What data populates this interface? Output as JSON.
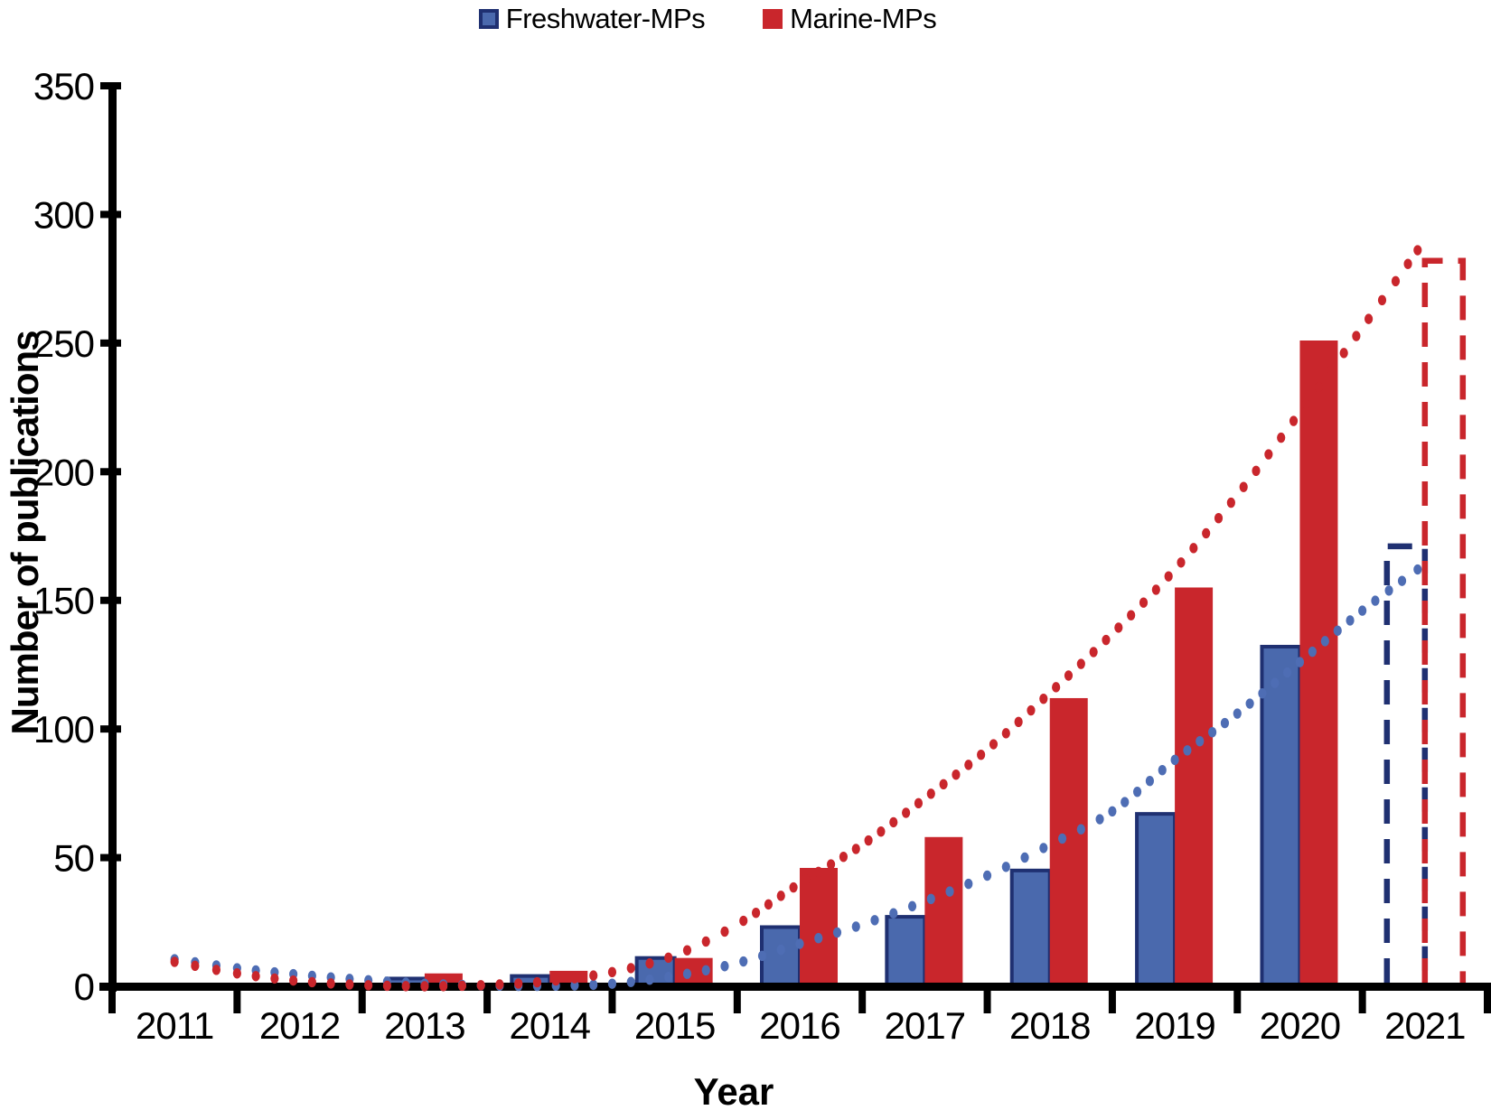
{
  "figure": {
    "y_axis_title": "Number of publications",
    "x_axis_title": "Year",
    "legend": [
      {
        "label": "Freshwater-MPs",
        "fill": "#4A69AD",
        "border": "#1F3071"
      },
      {
        "label": "Marine-MPs",
        "fill": "#C9262C",
        "border": "#C9262C"
      }
    ]
  },
  "chart_data": {
    "type": "bar",
    "title": "",
    "xlabel": "Year",
    "ylabel": "Number of publications",
    "categories": [
      "2011",
      "2012",
      "2013",
      "2014",
      "2015",
      "2016",
      "2017",
      "2018",
      "2019",
      "2020",
      "2021"
    ],
    "series": [
      {
        "name": "Freshwater-MPs",
        "key": "freshwater",
        "fill": "#4A69AD",
        "border": "#1F3071",
        "values": [
          0,
          0,
          3,
          4,
          11,
          23,
          27,
          45,
          67,
          132,
          171
        ],
        "projected_categories": [
          "2021"
        ]
      },
      {
        "name": "Marine-MPs",
        "key": "marine",
        "fill": "#C9262C",
        "border": "#C9262C",
        "values": [
          0,
          0,
          5,
          6,
          11,
          46,
          58,
          112,
          155,
          251,
          282
        ],
        "projected_categories": [
          "2021"
        ]
      }
    ],
    "trendlines": [
      {
        "name": "Freshwater-MPs polynomial trend",
        "key": "freshwater",
        "style": "dotted",
        "color": "#4E6DB4",
        "points": [
          [
            0,
            10.5
          ],
          [
            0.5,
            7
          ],
          [
            1,
            4.5
          ],
          [
            1.5,
            2.5
          ],
          [
            2,
            1
          ],
          [
            2.5,
            0.3
          ],
          [
            3,
            0.2
          ],
          [
            3.5,
            1
          ],
          [
            4,
            4
          ],
          [
            4.5,
            9
          ],
          [
            5,
            16.5
          ],
          [
            5.5,
            24
          ],
          [
            6,
            33
          ],
          [
            6.5,
            43
          ],
          [
            7,
            55
          ],
          [
            7.5,
            68
          ],
          [
            8,
            88
          ],
          [
            8.5,
            106
          ],
          [
            9,
            126
          ],
          [
            9.5,
            146
          ],
          [
            9.97,
            163
          ]
        ]
      },
      {
        "name": "Marine-MPs polynomial trend",
        "key": "marine",
        "style": "dotted",
        "color": "#C9262C",
        "points": [
          [
            0,
            9.5
          ],
          [
            0.5,
            5
          ],
          [
            1,
            2
          ],
          [
            1.5,
            0.5
          ],
          [
            2,
            0
          ],
          [
            2.5,
            0.5
          ],
          [
            3,
            2
          ],
          [
            3.5,
            5.5
          ],
          [
            4,
            12
          ],
          [
            4.5,
            24
          ],
          [
            5,
            40
          ],
          [
            5.5,
            55
          ],
          [
            6,
            73
          ],
          [
            6.5,
            92
          ],
          [
            7,
            114
          ],
          [
            7.5,
            137
          ],
          [
            8,
            162
          ],
          [
            8.5,
            191
          ],
          [
            9,
            223
          ],
          [
            9.5,
            256
          ],
          [
            9.97,
            288
          ]
        ]
      }
    ],
    "ylim": [
      0,
      350
    ],
    "y_ticks": [
      0,
      50,
      100,
      150,
      200,
      250,
      300,
      350
    ],
    "grid": false,
    "legend_position": "top",
    "projection_note": "2021 bars drawn as dashed outlines (projected values)"
  }
}
